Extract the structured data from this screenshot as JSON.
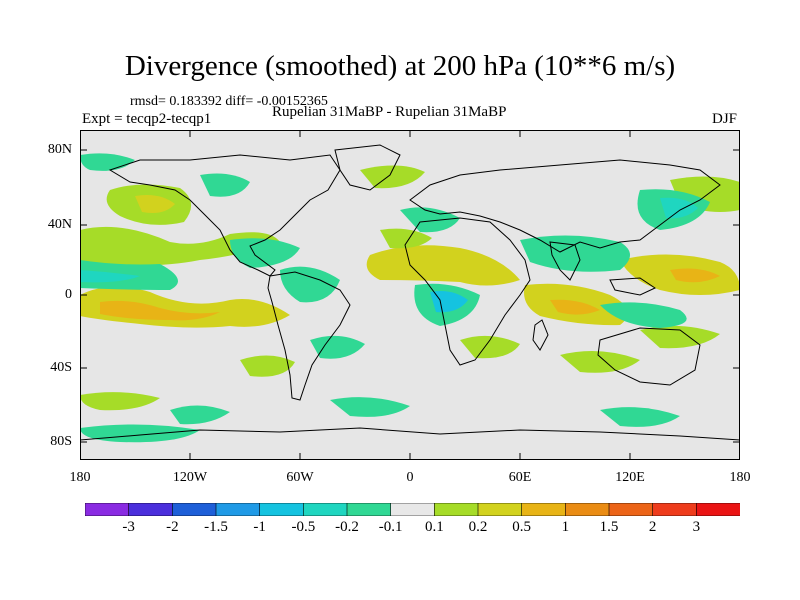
{
  "title": "Divergence (smoothed) at 200 hPa (10**6 m/s)",
  "stats": "rmsd= 0.183392 diff= -0.00152365",
  "expt": "Expt = tecqp2-tecqp1",
  "runs": "Rupelian  31MaBP - Rupelian  31MaBP",
  "season": "DJF",
  "lat_labels": [
    "80N",
    "40N",
    "0",
    "40S",
    "80S"
  ],
  "lon_labels": [
    "180",
    "120W",
    "60W",
    "0",
    "60E",
    "120E",
    "180"
  ],
  "colorbar": {
    "labels": [
      "-3",
      "-2",
      "-1.5",
      "-1",
      "-0.5",
      "-0.2",
      "-0.1",
      "0.1",
      "0.2",
      "0.5",
      "1",
      "1.5",
      "2",
      "3"
    ],
    "colors": [
      "#8a2be2",
      "#4b2fdc",
      "#1e5fd8",
      "#1f9ae6",
      "#15c3e0",
      "#1fd6c0",
      "#30d894",
      "#e8e8e8",
      "#a6dc28",
      "#d2d21e",
      "#e8b416",
      "#ea8c14",
      "#ec6418",
      "#ee3c1c",
      "#ea1414"
    ]
  },
  "colors": {
    "land": "#e6e6e6",
    "neg_weak": "#30d894",
    "neg_mod": "#1fd6c0",
    "neg_strong": "#15c3e0",
    "pos_weak": "#a6dc28",
    "pos_mod": "#d2d21e",
    "pos_strong": "#e8b416"
  }
}
